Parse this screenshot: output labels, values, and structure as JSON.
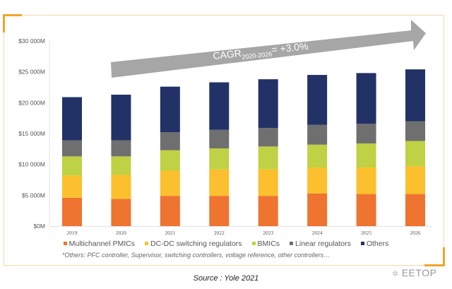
{
  "chart_data": {
    "type": "bar",
    "stacked": true,
    "title": "",
    "xlabel": "",
    "ylabel": "",
    "ylim": [
      0,
      30000
    ],
    "yticks": [
      0,
      5000,
      10000,
      15000,
      20000,
      25000,
      30000
    ],
    "ytick_labels": [
      "$0M",
      "$5 000M",
      "$10 000M",
      "$15 000M",
      "$20 000M",
      "$25 000M",
      "$30 000M"
    ],
    "categories": [
      "2019",
      "2020",
      "2021",
      "2022",
      "2023",
      "2024",
      "2025",
      "2026"
    ],
    "series": [
      {
        "name": "Multichannel PMICs",
        "color": "#ee7430",
        "values": [
          4600,
          4400,
          4900,
          4900,
          4900,
          5300,
          5200,
          5200
        ]
      },
      {
        "name": "DC-DC switching regulators",
        "color": "#fcbf2e",
        "values": [
          3600,
          3900,
          4100,
          4300,
          4300,
          4200,
          4300,
          4500
        ]
      },
      {
        "name": "BMICs",
        "color": "#bfd144",
        "values": [
          3100,
          3000,
          3300,
          3400,
          3700,
          3700,
          3900,
          4100
        ]
      },
      {
        "name": "Linear regulators",
        "color": "#6f6f6f",
        "values": [
          2600,
          2600,
          2900,
          3000,
          3000,
          3200,
          3200,
          3200
        ]
      },
      {
        "name": "Others",
        "color": "#233266",
        "values": [
          7000,
          7400,
          7400,
          7700,
          7900,
          8100,
          8200,
          8400
        ]
      }
    ],
    "totals": [
      20900,
      21300,
      22600,
      23300,
      23800,
      24500,
      24800,
      25400
    ],
    "grid": false,
    "legend_position": "bottom",
    "annotation": {
      "text_main": "CAGR",
      "text_subscript": "2020-2026",
      "text_value": "= +3.0%",
      "shape": "upward-trend-arrow",
      "color": "#a6a6a6"
    },
    "footnote": "*Others: PFC controller, Supervisor, switching controllers, voltage reference, other controllers…"
  },
  "source": "Source :  Yole 2021",
  "watermark": "EETOP",
  "colors": {
    "frame": "#f3d9ae",
    "accent": "#f0a52c",
    "axis_text": "#555555"
  }
}
